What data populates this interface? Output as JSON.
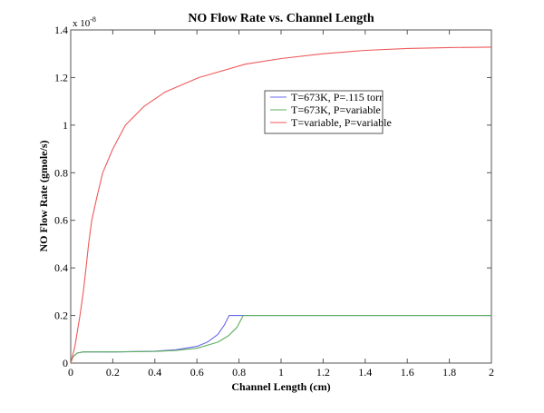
{
  "chart_data": {
    "type": "line",
    "title": "NO Flow Rate vs. Channel Length",
    "xlabel": "Channel Length (cm)",
    "ylabel": "NO Flow Rate (gmole/s)",
    "y_exponent_base": "x 10",
    "y_exponent_power": "-8",
    "xlim": [
      0,
      2
    ],
    "ylim": [
      0,
      1.4
    ],
    "xticks": [
      0,
      0.2,
      0.4,
      0.6,
      0.8,
      1,
      1.2,
      1.4,
      1.6,
      1.8,
      2
    ],
    "xtick_labels": [
      "0",
      "0.2",
      "0.4",
      "0.6",
      "0.8",
      "1",
      "1.2",
      "1.4",
      "1.6",
      "1.8",
      "2"
    ],
    "yticks": [
      0,
      0.2,
      0.4,
      0.6,
      0.8,
      1,
      1.2,
      1.4
    ],
    "ytick_labels": [
      "0",
      "0.2",
      "0.4",
      "0.6",
      "0.8",
      "1",
      "1.2",
      "1.4"
    ],
    "grid": false,
    "legend_placement": "upper-center-right",
    "series": [
      {
        "name": "T=673K, P=.115 torr",
        "color": "#6a6aee",
        "points": [
          [
            0,
            0
          ],
          [
            0.01,
            0.025
          ],
          [
            0.03,
            0.042
          ],
          [
            0.06,
            0.047
          ],
          [
            0.2,
            0.047
          ],
          [
            0.4,
            0.05
          ],
          [
            0.5,
            0.056
          ],
          [
            0.6,
            0.07
          ],
          [
            0.65,
            0.088
          ],
          [
            0.7,
            0.121
          ],
          [
            0.73,
            0.16
          ],
          [
            0.753,
            0.2
          ],
          [
            2,
            0.2
          ]
        ]
      },
      {
        "name": "T=673K, P=variable",
        "color": "#5fae5f",
        "points": [
          [
            0,
            0
          ],
          [
            0.01,
            0.025
          ],
          [
            0.03,
            0.042
          ],
          [
            0.06,
            0.047
          ],
          [
            0.2,
            0.047
          ],
          [
            0.4,
            0.049
          ],
          [
            0.5,
            0.053
          ],
          [
            0.6,
            0.062
          ],
          [
            0.7,
            0.088
          ],
          [
            0.75,
            0.115
          ],
          [
            0.79,
            0.15
          ],
          [
            0.82,
            0.2
          ],
          [
            2,
            0.2
          ]
        ]
      },
      {
        "name": "T=variable, P=variable",
        "color": "#ee5a5a",
        "points": [
          [
            0,
            0
          ],
          [
            0.02,
            0.07
          ],
          [
            0.044,
            0.2
          ],
          [
            0.06,
            0.3
          ],
          [
            0.073,
            0.4
          ],
          [
            0.085,
            0.5
          ],
          [
            0.1,
            0.6
          ],
          [
            0.125,
            0.7
          ],
          [
            0.152,
            0.8
          ],
          [
            0.2,
            0.9
          ],
          [
            0.26,
            1.0
          ],
          [
            0.35,
            1.08
          ],
          [
            0.45,
            1.14
          ],
          [
            0.61,
            1.2
          ],
          [
            0.83,
            1.256
          ],
          [
            1.0,
            1.28
          ],
          [
            1.2,
            1.3
          ],
          [
            1.4,
            1.314
          ],
          [
            1.6,
            1.322
          ],
          [
            1.8,
            1.326
          ],
          [
            2.0,
            1.328
          ]
        ]
      }
    ]
  }
}
